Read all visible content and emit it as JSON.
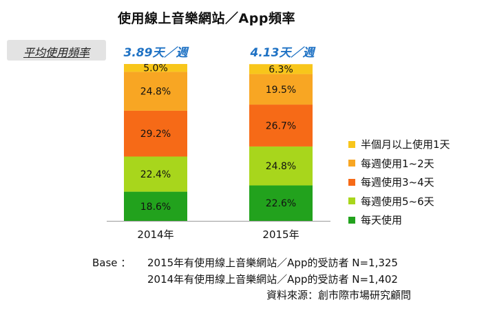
{
  "chart_data": {
    "type": "bar",
    "stacked": true,
    "title": "使用線上音樂網站／App頻率",
    "categories": [
      "2014年",
      "2015年"
    ],
    "series": [
      {
        "name": "每天使用",
        "values": [
          18.6,
          22.6
        ],
        "color": "#22a21d"
      },
      {
        "name": "每週使用5~6天",
        "values": [
          22.4,
          24.8
        ],
        "color": "#a8d61c"
      },
      {
        "name": "每週使用3~4天",
        "values": [
          29.2,
          26.7
        ],
        "color": "#f66a17"
      },
      {
        "name": "每週使用1~2天",
        "values": [
          24.8,
          19.5
        ],
        "color": "#f8a623"
      },
      {
        "name": "半個月以上使用1天",
        "values": [
          5.0,
          6.3
        ],
        "color": "#f8c61b"
      }
    ],
    "value_suffix": "%",
    "legend_position": "right",
    "ylim": [
      0,
      100
    ]
  },
  "summary": {
    "label": "平均使用頻率",
    "values": [
      "3.89天／週",
      "4.13天／週"
    ]
  },
  "footer": {
    "base_label": "Base ：",
    "base_lines": [
      "2015年有使用線上音樂網站／App的受訪者 N=1,325",
      "2014年有使用線上音樂網站／App的受訪者 N=1,402"
    ],
    "source": "資料來源：創市際市場研究顧問"
  }
}
